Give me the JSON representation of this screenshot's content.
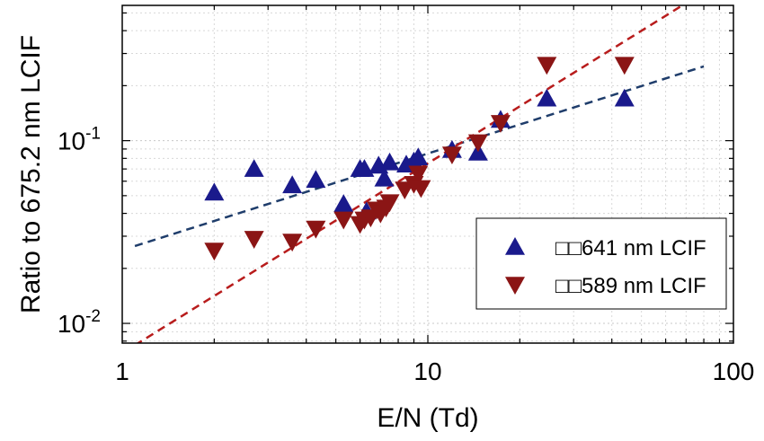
{
  "chart_data": {
    "type": "scatter",
    "xlabel": "E/N (Td)",
    "ylabel": "Ratio to 675.2 nm LCIF",
    "xscale": "log",
    "yscale": "log",
    "xlim": [
      1,
      100
    ],
    "ylim": [
      0.0078,
      0.55
    ],
    "grid": true,
    "legend_position": "bottom-right",
    "xticks": [
      {
        "value": 1,
        "label": "1"
      },
      {
        "value": 10,
        "label": "10"
      },
      {
        "value": 100,
        "label": "100"
      }
    ],
    "yticks": [
      {
        "value": 0.01,
        "base": "10",
        "exp": "-2"
      },
      {
        "value": 0.1,
        "base": "10",
        "exp": "-1"
      }
    ],
    "series": [
      {
        "name": "641 nm LCIF",
        "legend_prefix": "□□",
        "marker": "triangle-up",
        "color": "#1a1a8c",
        "x": [
          2.0,
          2.7,
          3.6,
          4.3,
          5.3,
          6.0,
          6.2,
          6.3,
          6.9,
          7.2,
          7.5,
          8.5,
          9.0,
          9.3,
          12.0,
          14.6,
          17.3,
          24.5,
          44.0
        ],
        "y": [
          0.052,
          0.07,
          0.057,
          0.061,
          0.045,
          0.07,
          0.07,
          0.041,
          0.073,
          0.062,
          0.076,
          0.074,
          0.077,
          0.081,
          0.089,
          0.086,
          0.13,
          0.17,
          0.17
        ]
      },
      {
        "name": "589 nm LCIF",
        "legend_prefix": "□□",
        "marker": "triangle-down",
        "color": "#8b1515",
        "x": [
          2.0,
          2.7,
          3.6,
          4.3,
          5.3,
          6.0,
          6.2,
          6.5,
          6.8,
          7.0,
          7.3,
          7.5,
          8.4,
          9.0,
          9.3,
          9.5,
          12.0,
          14.6,
          17.3,
          24.5,
          44.0
        ],
        "y": [
          0.025,
          0.029,
          0.028,
          0.033,
          0.037,
          0.035,
          0.037,
          0.038,
          0.042,
          0.04,
          0.043,
          0.046,
          0.054,
          0.058,
          0.066,
          0.055,
          0.084,
          0.098,
          0.125,
          0.26,
          0.26
        ]
      }
    ],
    "fit_lines": [
      {
        "series": "641 nm LCIF",
        "color": "#1f3d6b",
        "style": "dashed",
        "x": [
          1.1,
          80
        ],
        "y": [
          0.0265,
          0.255
        ]
      },
      {
        "series": "589 nm LCIF",
        "color": "#b81c1c",
        "style": "dashed",
        "x": [
          1.1,
          100
        ],
        "y": [
          0.0076,
          0.82
        ]
      }
    ]
  }
}
